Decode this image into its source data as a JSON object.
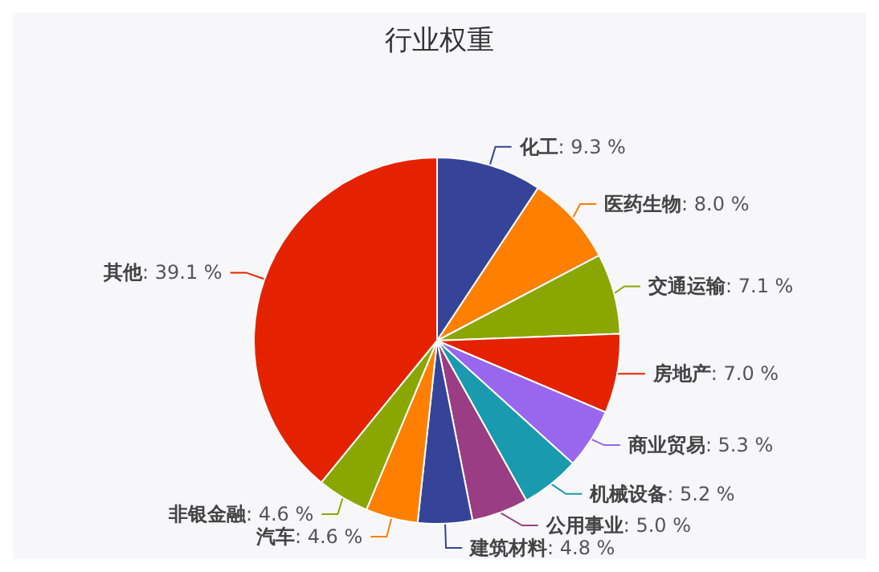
{
  "chart_data": {
    "type": "pie",
    "title": "行业权重",
    "categories": [
      "化工",
      "医药生物",
      "交通运输",
      "房地产",
      "商业贸易",
      "机械设备",
      "公用事业",
      "建筑材料",
      "汽车",
      "非银金融",
      "其他"
    ],
    "values": [
      9.3,
      8.0,
      7.1,
      7.0,
      5.3,
      5.2,
      5.0,
      4.8,
      4.6,
      4.6,
      39.1
    ],
    "value_labels": [
      ": 9.3 %",
      ": 8.0 %",
      ": 7.1 %",
      ": 7.0 %",
      ": 5.3 %",
      ": 5.2 %",
      ": 5.0 %",
      ": 4.8 %",
      ": 4.6 %",
      ": 4.6 %",
      ": 39.1 %"
    ],
    "colors": [
      "#354498",
      "#ff7f00",
      "#8aa600",
      "#e52200",
      "#9966ee",
      "#1a9aae",
      "#9a3d84",
      "#354498",
      "#ff7f00",
      "#8aa600",
      "#e52200"
    ],
    "legend": false
  }
}
